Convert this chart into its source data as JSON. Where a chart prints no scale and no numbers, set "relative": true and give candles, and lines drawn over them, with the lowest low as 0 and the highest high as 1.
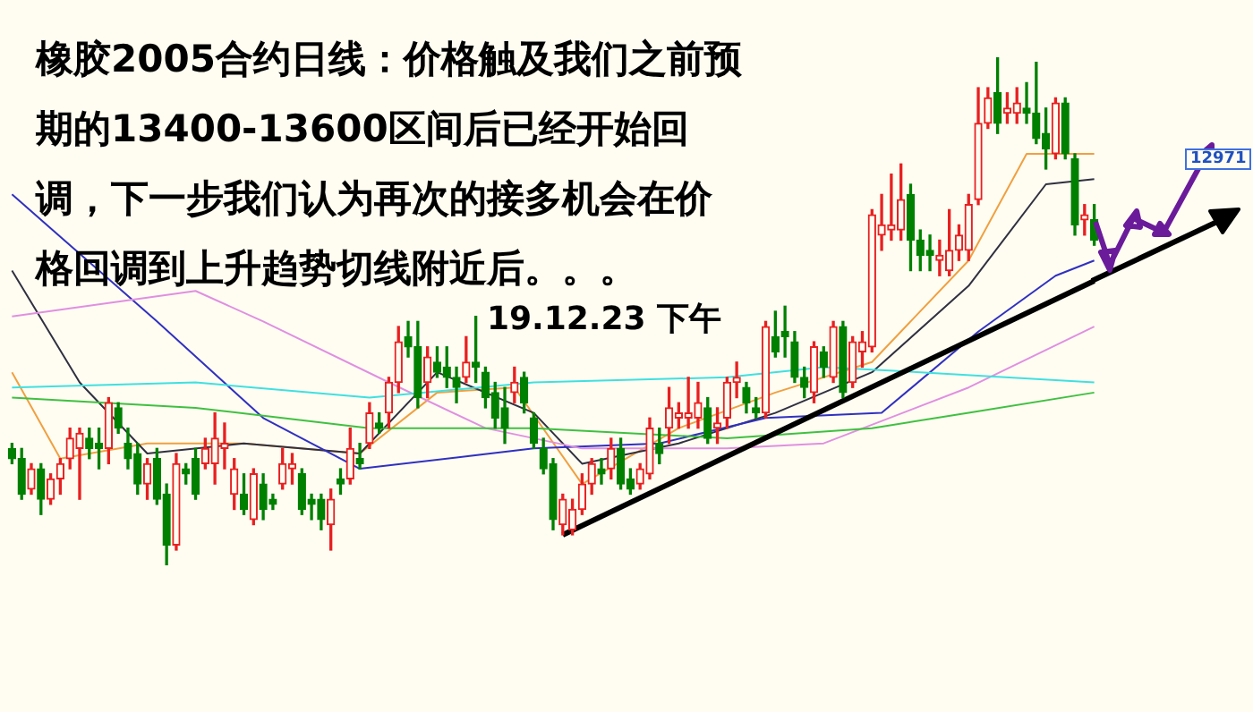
{
  "chart_data": {
    "type": "candlestick",
    "title": "橡胶2005合约日线：价格触及我们之前预期的13400-13600区间后已经开始回调，下一步我们认为再次的接多机会在价格回调到上升趋势切线附近后。。。",
    "annotations": [
      "19.12.23 下午",
      "12971"
    ],
    "relative": true,
    "categories": [
      null,
      null,
      null,
      null,
      null,
      null,
      null,
      null,
      null,
      null,
      null,
      null,
      null,
      null,
      null,
      null,
      null,
      null,
      null,
      null,
      null,
      null,
      null,
      null,
      null,
      null,
      null,
      null,
      null,
      null,
      null,
      null,
      null,
      null,
      null,
      null,
      null,
      null,
      null,
      null,
      null,
      null,
      null,
      null,
      null,
      null,
      null,
      null,
      null,
      null,
      null,
      null,
      null,
      null,
      null,
      null,
      null,
      null,
      null,
      null,
      null,
      null,
      null,
      null,
      null,
      null,
      null,
      null,
      null,
      null,
      null,
      null,
      null,
      null,
      null,
      null,
      null,
      null,
      null,
      null,
      null,
      null,
      null,
      null,
      null,
      null,
      null,
      null,
      null,
      null,
      null,
      null,
      null,
      null,
      null,
      null,
      null,
      null,
      null,
      null,
      null,
      null,
      null,
      null,
      null,
      null,
      null,
      null,
      null,
      null,
      null,
      null,
      null
    ],
    "ohlc": [
      [
        0.23,
        0.24,
        0.2,
        0.21
      ],
      [
        0.21,
        0.23,
        0.13,
        0.14
      ],
      [
        0.15,
        0.2,
        0.14,
        0.19
      ],
      [
        0.19,
        0.2,
        0.1,
        0.13
      ],
      [
        0.13,
        0.18,
        0.12,
        0.17
      ],
      [
        0.17,
        0.21,
        0.14,
        0.2
      ],
      [
        0.21,
        0.27,
        0.19,
        0.25
      ],
      [
        0.23,
        0.27,
        0.13,
        0.26
      ],
      [
        0.25,
        0.27,
        0.21,
        0.23
      ],
      [
        0.24,
        0.27,
        0.19,
        0.23
      ],
      [
        0.23,
        0.33,
        0.2,
        0.32
      ],
      [
        0.31,
        0.32,
        0.26,
        0.27
      ],
      [
        0.24,
        0.27,
        0.19,
        0.21
      ],
      [
        0.22,
        0.24,
        0.14,
        0.16
      ],
      [
        0.16,
        0.21,
        0.13,
        0.2
      ],
      [
        0.21,
        0.23,
        0.12,
        0.13
      ],
      [
        0.14,
        0.16,
        0,
        0.04
      ],
      [
        0.04,
        0.22,
        0.03,
        0.2
      ],
      [
        0.19,
        0.2,
        0.16,
        0.18
      ],
      [
        0.21,
        0.23,
        0.13,
        0.14
      ],
      [
        0.2,
        0.25,
        0.19,
        0.23
      ],
      [
        0.2,
        0.3,
        0.16,
        0.25
      ],
      [
        0.23,
        0.28,
        0.19,
        0.24
      ],
      [
        0.14,
        0.21,
        0.11,
        0.19
      ],
      [
        0.14,
        0.18,
        0.1,
        0.11
      ],
      [
        0.09,
        0.19,
        0.08,
        0.18
      ],
      [
        0.16,
        0.18,
        0.09,
        0.11
      ],
      [
        0.13,
        0.14,
        0.11,
        0.12
      ],
      [
        0.16,
        0.23,
        0.15,
        0.2
      ],
      [
        0.19,
        0.22,
        0.16,
        0.2
      ],
      [
        0.18,
        0.19,
        0.1,
        0.11
      ],
      [
        0.13,
        0.14,
        0.09,
        0.12
      ],
      [
        0.13,
        0.14,
        0.07,
        0.09
      ],
      [
        0.08,
        0.15,
        0.03,
        0.13
      ],
      [
        0.17,
        0.19,
        0.14,
        0.16
      ],
      [
        0.17,
        0.27,
        0.16,
        0.23
      ],
      [
        0.21,
        0.24,
        0.19,
        0.2
      ],
      [
        0.24,
        0.32,
        0.23,
        0.3
      ],
      [
        0.28,
        0.3,
        0.26,
        0.27
      ],
      [
        0.3,
        0.37,
        0.27,
        0.36
      ],
      [
        0.36,
        0.47,
        0.34,
        0.44
      ],
      [
        0.45,
        0.48,
        0.41,
        0.43
      ],
      [
        0.43,
        0.48,
        0.31,
        0.33
      ],
      [
        0.36,
        0.43,
        0.33,
        0.41
      ],
      [
        0.4,
        0.43,
        0.37,
        0.38
      ],
      [
        0.39,
        0.43,
        0.35,
        0.37
      ],
      [
        0.37,
        0.39,
        0.32,
        0.35
      ],
      [
        0.37,
        0.45,
        0.36,
        0.4
      ],
      [
        0.4,
        0.49,
        0.36,
        0.39
      ],
      [
        0.38,
        0.39,
        0.31,
        0.33
      ],
      [
        0.34,
        0.36,
        0.27,
        0.29
      ],
      [
        0.31,
        0.35,
        0.24,
        0.27
      ],
      [
        0.34,
        0.39,
        0.32,
        0.36
      ],
      [
        0.37,
        0.38,
        0.3,
        0.32
      ],
      [
        0.29,
        0.3,
        0.23,
        0.24
      ],
      [
        0.23,
        0.25,
        0.18,
        0.19
      ],
      [
        0.2,
        0.21,
        0.07,
        0.09
      ],
      [
        0.08,
        0.14,
        0.06,
        0.13
      ],
      [
        0.07,
        0.13,
        0.06,
        0.11
      ],
      [
        0.11,
        0.18,
        0.1,
        0.16
      ],
      [
        0.16,
        0.21,
        0.14,
        0.2
      ],
      [
        0.19,
        0.21,
        0.16,
        0.18
      ],
      [
        0.19,
        0.25,
        0.17,
        0.23
      ],
      [
        0.23,
        0.25,
        0.15,
        0.16
      ],
      [
        0.17,
        0.19,
        0.14,
        0.15
      ],
      [
        0.16,
        0.2,
        0.15,
        0.19
      ],
      [
        0.18,
        0.29,
        0.17,
        0.27
      ],
      [
        0.24,
        0.27,
        0.2,
        0.22
      ],
      [
        0.27,
        0.35,
        0.24,
        0.31
      ],
      [
        0.29,
        0.32,
        0.27,
        0.3
      ],
      [
        0.29,
        0.37,
        0.27,
        0.3
      ],
      [
        0.29,
        0.36,
        0.27,
        0.32
      ],
      [
        0.31,
        0.33,
        0.24,
        0.25
      ],
      [
        0.27,
        0.31,
        0.24,
        0.28
      ],
      [
        0.29,
        0.37,
        0.27,
        0.36
      ],
      [
        0.36,
        0.4,
        0.33,
        0.37
      ],
      [
        0.35,
        0.36,
        0.3,
        0.32
      ],
      [
        0.31,
        0.33,
        0.29,
        0.3
      ],
      [
        0.3,
        0.48,
        0.29,
        0.47
      ],
      [
        0.45,
        0.5,
        0.41,
        0.42
      ],
      [
        0.46,
        0.51,
        0.41,
        0.45
      ],
      [
        0.44,
        0.46,
        0.36,
        0.37
      ],
      [
        0.37,
        0.39,
        0.33,
        0.35
      ],
      [
        0.34,
        0.44,
        0.32,
        0.43
      ],
      [
        0.42,
        0.43,
        0.37,
        0.39
      ],
      [
        0.37,
        0.48,
        0.36,
        0.47
      ],
      [
        0.47,
        0.48,
        0.33,
        0.34
      ],
      [
        0.36,
        0.45,
        0.35,
        0.44
      ],
      [
        0.42,
        0.46,
        0.39,
        0.44
      ],
      [
        0.43,
        0.7,
        0.42,
        0.69
      ],
      [
        0.65,
        0.73,
        0.62,
        0.67
      ],
      [
        0.66,
        0.77,
        0.64,
        0.67
      ],
      [
        0.66,
        0.79,
        0.64,
        0.72
      ],
      [
        0.73,
        0.75,
        0.58,
        0.64
      ],
      [
        0.64,
        0.66,
        0.58,
        0.61
      ],
      [
        0.62,
        0.65,
        0.58,
        0.61
      ],
      [
        0.6,
        0.64,
        0.57,
        0.61
      ],
      [
        0.58,
        0.7,
        0.57,
        0.62
      ],
      [
        0.62,
        0.67,
        0.6,
        0.65
      ],
      [
        0.62,
        0.73,
        0.6,
        0.71
      ],
      [
        0.72,
        0.94,
        0.71,
        0.87
      ],
      [
        0.87,
        0.94,
        0.86,
        0.92
      ],
      [
        0.93,
        1,
        0.85,
        0.87
      ],
      [
        0.89,
        0.93,
        0.87,
        0.9
      ],
      [
        0.89,
        0.94,
        0.87,
        0.91
      ],
      [
        0.9,
        0.95,
        0.87,
        0.89
      ],
      [
        0.89,
        0.99,
        0.83,
        0.84
      ],
      [
        0.85,
        0.9,
        0.78,
        0.82
      ],
      [
        0.81,
        0.92,
        0.8,
        0.91
      ],
      [
        0.91,
        0.92,
        0.8,
        0.81
      ],
      [
        0.8,
        0.81,
        0.65,
        0.67
      ],
      [
        0.68,
        0.71,
        0.65,
        0.69
      ],
      [
        0.68,
        0.71,
        0.63,
        0.64
      ]
    ],
    "series": [
      {
        "type": "line",
        "color": "#000000",
        "values": [
          null,
          null,
          null,
          null,
          null,
          null,
          null,
          null,
          null,
          null,
          null,
          null,
          null,
          null,
          null,
          null,
          null,
          null,
          null,
          null,
          null,
          null,
          null,
          null,
          null,
          null,
          null,
          null,
          null,
          null,
          null,
          null,
          null,
          null,
          null,
          null,
          null,
          null,
          null,
          null,
          null,
          null,
          null,
          null,
          null,
          null,
          null,
          null,
          null,
          null,
          null,
          null,
          null,
          null,
          null,
          null,
          null,
          0.06,
          null,
          null,
          null,
          null,
          null,
          null,
          null,
          null,
          null,
          null,
          null,
          null,
          null,
          null,
          null,
          null,
          null,
          null,
          null,
          null,
          null,
          null,
          null,
          null,
          null,
          null,
          null,
          null,
          null,
          null,
          null,
          null,
          null,
          null,
          null,
          null,
          null,
          null,
          null,
          null,
          null,
          null,
          null,
          null,
          null,
          null,
          null,
          null,
          null,
          null,
          null,
          null,
          null,
          null,
          0.56
        ]
      },
      {
        "type": "line",
        "color": "#40e0e0",
        "values": [
          0.35,
          null,
          null,
          null,
          null,
          null,
          null,
          null,
          null,
          null,
          null,
          null,
          null,
          null,
          null,
          null,
          null,
          null,
          null,
          0.36,
          null,
          null,
          null,
          null,
          null,
          null,
          null,
          null,
          null,
          null,
          null,
          null,
          null,
          null,
          null,
          null,
          null,
          0.33,
          null,
          null,
          null,
          null,
          null,
          null,
          null,
          null,
          null,
          null,
          null,
          null,
          null,
          null,
          null,
          null,
          0.36,
          null,
          null,
          null,
          null,
          null,
          null,
          null,
          null,
          null,
          null,
          null,
          null,
          null,
          null,
          null,
          null,
          null,
          null,
          null,
          0.37,
          null,
          null,
          null,
          null,
          null,
          null,
          null,
          null,
          null,
          0.39,
          null,
          null,
          null,
          null,
          null,
          null,
          null,
          null,
          null,
          0.38,
          null,
          null,
          null,
          null,
          null,
          null,
          null,
          null,
          null,
          null,
          null,
          null,
          null,
          null,
          null,
          null,
          null,
          0.36
        ]
      },
      {
        "type": "line",
        "color": "#40c040",
        "values": [
          0.33,
          null,
          null,
          null,
          null,
          null,
          null,
          null,
          null,
          null,
          null,
          null,
          null,
          null,
          null,
          null,
          null,
          null,
          null,
          0.31,
          null,
          null,
          null,
          null,
          null,
          null,
          null,
          null,
          null,
          null,
          null,
          null,
          null,
          null,
          null,
          null,
          null,
          0.27,
          null,
          null,
          null,
          null,
          null,
          null,
          null,
          null,
          null,
          null,
          null,
          null,
          null,
          null,
          null,
          null,
          0.27,
          null,
          null,
          null,
          null,
          null,
          null,
          null,
          null,
          null,
          null,
          null,
          null,
          null,
          null,
          null,
          null,
          null,
          null,
          null,
          0.25,
          null,
          null,
          null,
          null,
          null,
          null,
          null,
          null,
          null,
          null,
          null,
          null,
          null,
          null,
          0.27,
          null,
          null,
          null,
          null,
          null,
          null,
          null,
          null,
          null,
          0.3,
          null,
          null,
          null,
          null,
          null,
          null,
          null,
          null,
          null,
          null,
          null,
          null,
          0.34
        ]
      },
      {
        "type": "line",
        "color": "#e090e0",
        "values": [
          0.49,
          null,
          null,
          null,
          null,
          null,
          null,
          null,
          null,
          null,
          null,
          null,
          null,
          null,
          null,
          null,
          null,
          null,
          null,
          0.54,
          null,
          null,
          null,
          null,
          null,
          null,
          0.48,
          null,
          null,
          null,
          null,
          null,
          null,
          null,
          null,
          null,
          null,
          null,
          null,
          0.36,
          null,
          null,
          null,
          null,
          null,
          null,
          null,
          null,
          null,
          0.27,
          null,
          null,
          null,
          null,
          null,
          null,
          null,
          null,
          null,
          0.23,
          null,
          null,
          null,
          null,
          null,
          null,
          null,
          null,
          null,
          null,
          null,
          null,
          null,
          null,
          0.23,
          null,
          null,
          null,
          null,
          null,
          null,
          null,
          null,
          null,
          0.24,
          null,
          null,
          null,
          null,
          null,
          null,
          null,
          null,
          null,
          null,
          null,
          null,
          null,
          null,
          0.35,
          null,
          null,
          null,
          null,
          null,
          null,
          null,
          null,
          null,
          null,
          null,
          null,
          0.47
        ]
      },
      {
        "type": "line",
        "color": "#3030c0",
        "values": [
          0.73,
          null,
          null,
          null,
          null,
          null,
          null,
          null,
          null,
          null,
          null,
          null,
          null,
          null,
          null,
          0.48,
          null,
          null,
          null,
          null,
          null,
          null,
          null,
          null,
          null,
          null,
          0.29,
          null,
          null,
          null,
          null,
          null,
          null,
          null,
          null,
          null,
          0.19,
          null,
          null,
          null,
          null,
          null,
          null,
          null,
          null,
          null,
          null,
          null,
          null,
          null,
          null,
          null,
          null,
          null,
          0.23,
          null,
          null,
          null,
          null,
          null,
          null,
          null,
          null,
          null,
          null,
          null,
          null,
          0.24,
          null,
          null,
          null,
          null,
          null,
          null,
          null,
          null,
          null,
          null,
          0.29,
          null,
          null,
          null,
          null,
          null,
          null,
          null,
          null,
          null,
          null,
          null,
          0.3,
          null,
          null,
          null,
          null,
          null,
          null,
          null,
          null,
          null,
          0.46,
          null,
          null,
          null,
          null,
          null,
          null,
          null,
          0.57,
          null,
          null,
          null,
          0.6
        ]
      },
      {
        "type": "line",
        "color": "#303040",
        "values": [
          0.58,
          null,
          null,
          null,
          null,
          null,
          null,
          0.36,
          null,
          null,
          null,
          null,
          null,
          null,
          0.22,
          null,
          null,
          null,
          null,
          null,
          null,
          null,
          null,
          null,
          0.24,
          null,
          null,
          null,
          null,
          null,
          null,
          null,
          null,
          null,
          null,
          null,
          0.22,
          null,
          null,
          null,
          null,
          null,
          null,
          null,
          0.38,
          null,
          null,
          null,
          null,
          null,
          null,
          null,
          null,
          null,
          0.3,
          null,
          null,
          null,
          null,
          0.2,
          null,
          null,
          null,
          null,
          null,
          null,
          null,
          null,
          null,
          0.24,
          null,
          null,
          null,
          null,
          null,
          null,
          null,
          null,
          null,
          0.3,
          null,
          null,
          null,
          null,
          null,
          null,
          null,
          null,
          null,
          0.38,
          null,
          null,
          null,
          null,
          null,
          null,
          null,
          null,
          null,
          0.55,
          null,
          null,
          null,
          null,
          null,
          null,
          null,
          0.75,
          null,
          null,
          null,
          null,
          0.76
        ]
      },
      {
        "type": "line",
        "color": "#f0a040",
        "values": [
          0.38,
          null,
          null,
          null,
          null,
          0.21,
          null,
          null,
          null,
          null,
          null,
          null,
          null,
          null,
          0.24,
          null,
          null,
          null,
          null,
          null,
          null,
          null,
          null,
          null,
          0.24,
          null,
          null,
          null,
          null,
          null,
          null,
          null,
          null,
          null,
          null,
          null,
          0.22,
          null,
          null,
          null,
          null,
          null,
          null,
          null,
          0.34,
          null,
          null,
          null,
          null,
          null,
          null,
          null,
          0.35,
          null,
          null,
          null,
          null,
          null,
          null,
          0.16,
          null,
          null,
          null,
          null,
          null,
          null,
          null,
          null,
          null,
          0.27,
          null,
          null,
          null,
          null,
          null,
          null,
          null,
          null,
          null,
          0.34,
          null,
          null,
          null,
          null,
          null,
          null,
          null,
          null,
          null,
          0.4,
          null,
          null,
          null,
          null,
          null,
          null,
          null,
          null,
          null,
          0.6,
          null,
          null,
          null,
          null,
          null,
          0.81,
          null,
          null,
          null,
          null,
          null,
          null,
          0.81
        ]
      }
    ]
  }
}
